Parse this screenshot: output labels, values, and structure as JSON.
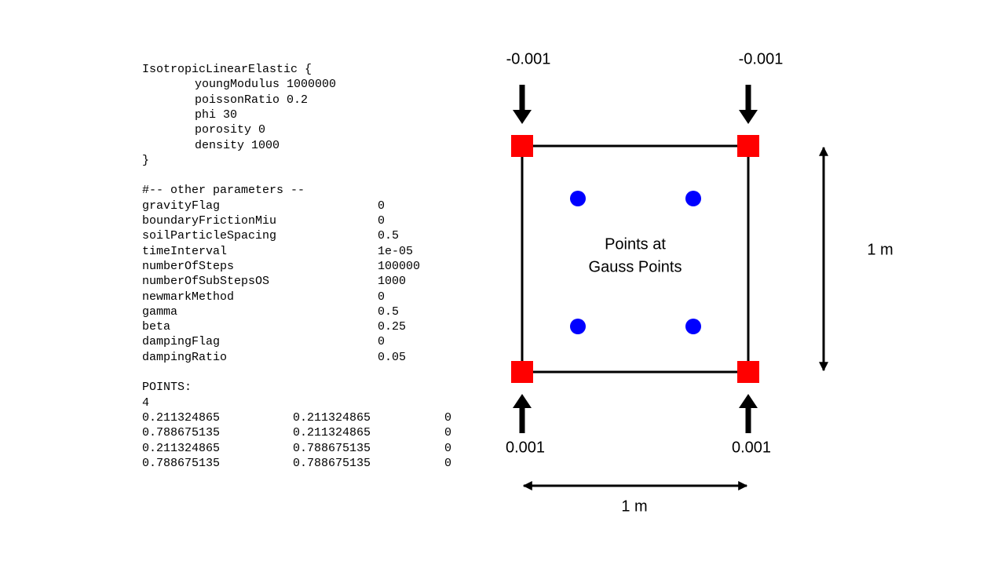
{
  "material": {
    "header": "IsotropicLinearElastic {",
    "properties": [
      {
        "name": "youngModulus",
        "value": "1000000"
      },
      {
        "name": "poissonRatio",
        "value": "0.2"
      },
      {
        "name": "phi",
        "value": "30"
      },
      {
        "name": "porosity",
        "value": "0"
      },
      {
        "name": "density",
        "value": "1000"
      }
    ],
    "close": "}"
  },
  "parameters": {
    "header": "#-- other parameters --",
    "rows": [
      {
        "name": "gravityFlag",
        "value": "0"
      },
      {
        "name": "boundaryFrictionMiu",
        "value": "0"
      },
      {
        "name": "soilParticleSpacing",
        "value": "0.5"
      },
      {
        "name": "timeInterval",
        "value": "1e-05"
      },
      {
        "name": "numberOfSteps",
        "value": "100000"
      },
      {
        "name": "numberOfSubStepsOS",
        "value": "1000"
      },
      {
        "name": "newmarkMethod",
        "value": "0"
      },
      {
        "name": "gamma",
        "value": "0.5"
      },
      {
        "name": "beta",
        "value": "0.25"
      },
      {
        "name": "dampingFlag",
        "value": "0"
      },
      {
        "name": "dampingRatio",
        "value": "0.05"
      }
    ]
  },
  "points": {
    "header": "POINTS:",
    "count": "4",
    "rows": [
      [
        "0.211324865",
        "0.211324865",
        "0"
      ],
      [
        "0.788675135",
        "0.211324865",
        "0"
      ],
      [
        "0.211324865",
        "0.788675135",
        "0"
      ],
      [
        "0.788675135",
        "0.788675135",
        "0"
      ]
    ]
  },
  "diagram": {
    "top_loads": [
      "-0.001",
      "-0.001"
    ],
    "bottom_loads": [
      "0.001",
      "0.001"
    ],
    "center_label": [
      "Points at",
      "Gauss Points"
    ],
    "height_label": "1 m",
    "width_label": "1 m"
  }
}
